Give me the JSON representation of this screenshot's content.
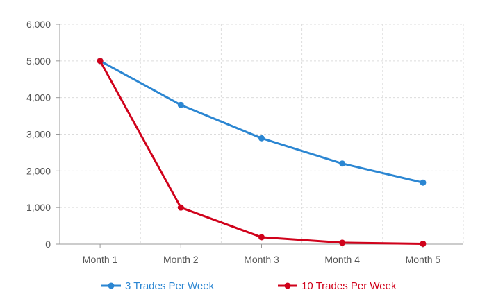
{
  "chart_data": {
    "type": "line",
    "categories": [
      "Month 1",
      "Month 2",
      "Month 3",
      "Month 4",
      "Month 5"
    ],
    "series": [
      {
        "name": "3 Trades Per Week",
        "color": "#2b86d2",
        "values": [
          5000,
          3800,
          2890,
          2200,
          1680
        ]
      },
      {
        "name": "10 Trades Per Week",
        "color": "#d0021b",
        "values": [
          5000,
          1000,
          190,
          40,
          10
        ]
      }
    ],
    "y_ticks": [
      "0",
      "1,000",
      "2,000",
      "3,000",
      "4,000",
      "5,000",
      "6,000"
    ],
    "ylim": [
      0,
      6000
    ],
    "grid": true,
    "legend_position": "bottom"
  }
}
